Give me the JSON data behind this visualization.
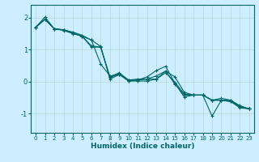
{
  "xlabel": "Humidex (Indice chaleur)",
  "background_color": "#cceeff",
  "grid_color": "#b8ddd8",
  "line_color": "#006666",
  "xlim": [
    -0.5,
    23.5
  ],
  "ylim": [
    -1.6,
    2.4
  ],
  "yticks": [
    -1,
    0,
    1,
    2
  ],
  "xticks": [
    0,
    1,
    2,
    3,
    4,
    5,
    6,
    7,
    8,
    9,
    10,
    11,
    12,
    13,
    14,
    15,
    16,
    17,
    18,
    19,
    20,
    21,
    22,
    23
  ],
  "series": [
    {
      "x": [
        0,
        1,
        2,
        3,
        4,
        5,
        6,
        7,
        8,
        9,
        10,
        11,
        12,
        13,
        14,
        15,
        16,
        17,
        18,
        19,
        20,
        21,
        22,
        23
      ],
      "y": [
        1.7,
        1.95,
        1.65,
        1.6,
        1.5,
        1.42,
        1.3,
        1.1,
        0.08,
        0.22,
        0.02,
        0.02,
        0.02,
        0.08,
        0.33,
        0.15,
        -0.33,
        -0.42,
        -0.42,
        -1.08,
        -0.58,
        -0.58,
        -0.75,
        -0.85
      ]
    },
    {
      "x": [
        0,
        1,
        2,
        3,
        4,
        5,
        6,
        7,
        8,
        9,
        10,
        11,
        12,
        13,
        14,
        15,
        16,
        17,
        18,
        19,
        20,
        21,
        22,
        23
      ],
      "y": [
        1.7,
        2.02,
        1.65,
        1.62,
        1.52,
        1.42,
        1.08,
        1.08,
        0.15,
        0.28,
        0.05,
        0.05,
        0.15,
        0.35,
        0.48,
        -0.05,
        -0.48,
        -0.42,
        -0.42,
        -0.58,
        -0.58,
        -0.62,
        -0.82,
        -0.85
      ]
    },
    {
      "x": [
        0,
        1,
        2,
        3,
        4,
        5,
        6,
        7,
        8,
        9,
        10,
        11,
        12,
        13,
        14,
        15,
        16,
        17,
        18,
        19,
        20,
        21,
        22,
        23
      ],
      "y": [
        1.7,
        1.95,
        1.65,
        1.62,
        1.55,
        1.45,
        1.3,
        0.55,
        0.18,
        0.22,
        0.05,
        0.08,
        0.08,
        0.18,
        0.33,
        -0.08,
        -0.42,
        -0.42,
        -0.42,
        -0.58,
        -0.58,
        -0.62,
        -0.78,
        -0.85
      ]
    },
    {
      "x": [
        0,
        1,
        2,
        3,
        4,
        5,
        6,
        7,
        8,
        9,
        10,
        11,
        12,
        13,
        14,
        15,
        16,
        17,
        18,
        19,
        20,
        21,
        22,
        23
      ],
      "y": [
        1.7,
        1.95,
        1.65,
        1.62,
        1.52,
        1.42,
        1.12,
        1.08,
        0.12,
        0.25,
        0.02,
        0.05,
        0.08,
        0.08,
        0.28,
        -0.02,
        -0.38,
        -0.42,
        -0.42,
        -0.58,
        -0.52,
        -0.58,
        -0.78,
        -0.85
      ]
    }
  ],
  "xlabel_fontsize": 6.5,
  "ytick_fontsize": 6,
  "xtick_fontsize": 5
}
